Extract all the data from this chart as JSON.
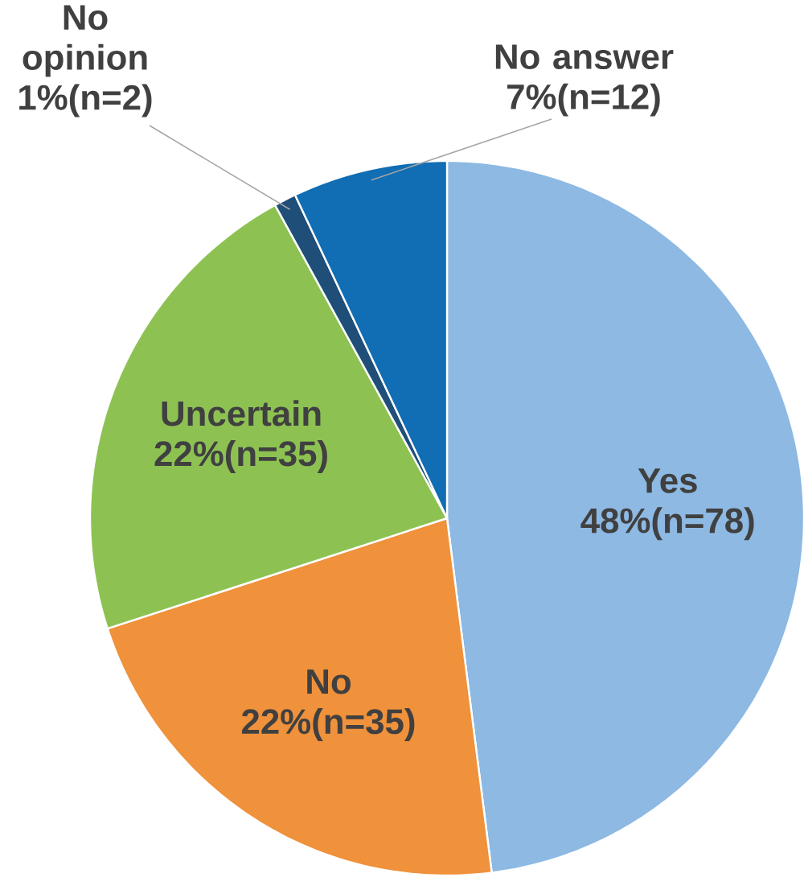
{
  "chart_data": {
    "type": "pie",
    "categories": [
      "Yes",
      "No",
      "Uncertain",
      "No opinion",
      "No answer"
    ],
    "values": [
      48,
      22,
      22,
      1,
      7
    ],
    "colors": [
      "#8db9e3",
      "#f0913b",
      "#8dc253",
      "#1f4e79",
      "#116db4"
    ],
    "value_labels": [
      "48%(n=78)",
      "22%(n=35)",
      "22%(n=35)",
      "1%(n=2)",
      "7%(n=12)"
    ]
  }
}
